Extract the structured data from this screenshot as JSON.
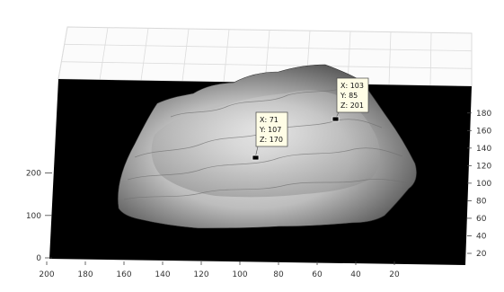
{
  "chart_data": {
    "type": "surface",
    "title": "",
    "xlabel": "",
    "ylabel": "",
    "zlabel": "",
    "grid": true,
    "background": "#000000",
    "colormap": "gray",
    "x_ticks": [
      "200",
      "180",
      "160",
      "140",
      "120",
      "100",
      "80",
      "60",
      "40",
      "20"
    ],
    "y_ticks": [
      "180",
      "160",
      "140",
      "120",
      "100",
      "80",
      "60",
      "40",
      "20"
    ],
    "z_ticks": [
      "200",
      "100",
      "0"
    ],
    "x_range": [
      0,
      200
    ],
    "y_range": [
      0,
      190
    ],
    "z_range": [
      0,
      250
    ],
    "datatips": [
      {
        "x": 103,
        "y": 85,
        "z": 201,
        "lines": [
          "X: 103",
          "Y: 85",
          "Z: 201"
        ]
      },
      {
        "x": 71,
        "y": 107,
        "z": 170,
        "lines": [
          "X: 71",
          "Y: 107",
          "Z: 170"
        ]
      }
    ]
  }
}
